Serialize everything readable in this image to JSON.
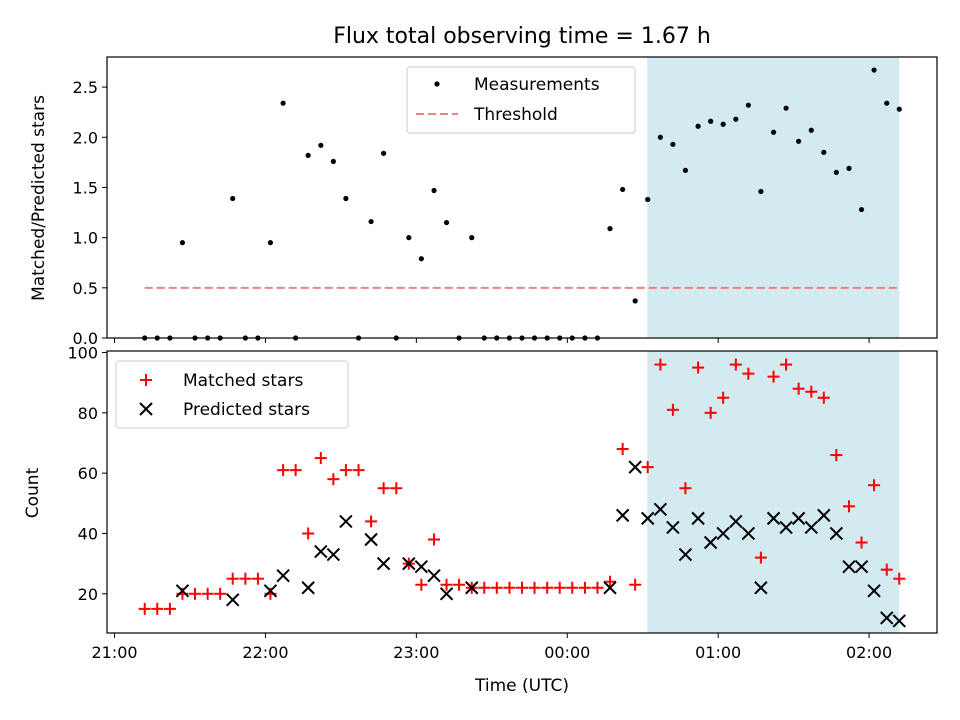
{
  "title": "Flux total observing time = 1.67 h",
  "chart_data": [
    {
      "type": "scatter",
      "panel": "top",
      "ylabel": "Matched/Predicted stars",
      "xlabel": "",
      "xlim": [
        -0.05,
        5.45
      ],
      "ylim": [
        0,
        2.8
      ],
      "yticks": [
        0.0,
        0.5,
        1.0,
        1.5,
        2.0,
        2.5
      ],
      "ytick_labels": [
        "0.0",
        "0.5",
        "1.0",
        "1.5",
        "2.0",
        "2.5"
      ],
      "shaded_region": [
        3.53,
        5.2
      ],
      "shaded_color": "#d3eaf0",
      "legend_position": "upper-center",
      "threshold": {
        "name": "Threshold",
        "value": 0.5,
        "x_range": [
          0.2,
          5.2
        ],
        "color": "#f08080"
      },
      "series": [
        {
          "name": "Measurements",
          "marker": "dot",
          "color": "#000000",
          "x": [
            0.2,
            0.283,
            0.367,
            0.45,
            0.533,
            0.617,
            0.7,
            0.783,
            0.867,
            0.95,
            1.033,
            1.117,
            1.2,
            1.283,
            1.367,
            1.45,
            1.533,
            1.617,
            1.7,
            1.783,
            1.867,
            1.95,
            2.033,
            2.117,
            2.2,
            2.283,
            2.367,
            2.45,
            2.533,
            2.617,
            2.7,
            2.783,
            2.867,
            2.95,
            3.033,
            3.117,
            3.2,
            3.283,
            3.367,
            3.45,
            3.533,
            3.617,
            3.7,
            3.783,
            3.867,
            3.95,
            4.033,
            4.117,
            4.2,
            4.283,
            4.367,
            4.45,
            4.533,
            4.617,
            4.7,
            4.783,
            4.867,
            4.95,
            5.033,
            5.117,
            5.2
          ],
          "y": [
            0,
            0,
            0,
            0.95,
            0,
            0,
            0,
            1.39,
            0,
            0,
            0.95,
            2.34,
            0,
            1.82,
            1.92,
            1.76,
            1.39,
            0,
            1.16,
            1.84,
            0,
            1.0,
            0.79,
            1.47,
            1.15,
            0,
            1.0,
            0,
            0,
            0,
            0,
            0,
            0,
            0,
            0,
            0,
            0,
            1.09,
            1.48,
            0.37,
            1.38,
            2.0,
            1.93,
            1.67,
            2.11,
            2.16,
            2.13,
            2.18,
            2.32,
            1.46,
            2.05,
            2.29,
            1.96,
            2.07,
            1.85,
            1.65,
            1.69,
            1.28,
            2.67,
            2.34,
            2.28
          ]
        }
      ]
    },
    {
      "type": "scatter",
      "panel": "bottom",
      "ylabel": "Count",
      "xlabel": "Time (UTC)",
      "xlim": [
        -0.05,
        5.45
      ],
      "ylim": [
        7,
        100.5
      ],
      "yticks": [
        20,
        40,
        60,
        80,
        100
      ],
      "ytick_labels": [
        "20",
        "40",
        "60",
        "80",
        "100"
      ],
      "xticks": [
        0,
        1,
        2,
        3,
        4,
        5
      ],
      "xtick_labels": [
        "21:00",
        "22:00",
        "23:00",
        "00:00",
        "01:00",
        "02:00"
      ],
      "shaded_region": [
        3.53,
        5.2
      ],
      "shaded_color": "#d3eaf0",
      "legend_position": "upper-left",
      "series": [
        {
          "name": "Matched stars",
          "marker": "plus",
          "color": "#ff0000",
          "x": [
            0.2,
            0.283,
            0.367,
            0.45,
            0.533,
            0.617,
            0.7,
            0.783,
            0.867,
            0.95,
            1.033,
            1.117,
            1.2,
            1.283,
            1.367,
            1.45,
            1.533,
            1.617,
            1.7,
            1.783,
            1.867,
            1.95,
            2.033,
            2.117,
            2.2,
            2.283,
            2.367,
            2.45,
            2.533,
            2.617,
            2.7,
            2.783,
            2.867,
            2.95,
            3.033,
            3.117,
            3.2,
            3.283,
            3.367,
            3.45,
            3.533,
            3.617,
            3.7,
            3.783,
            3.867,
            3.95,
            4.033,
            4.117,
            4.2,
            4.283,
            4.367,
            4.45,
            4.533,
            4.617,
            4.7,
            4.783,
            4.867,
            4.95,
            5.033,
            5.117,
            5.2
          ],
          "y": [
            15,
            15,
            15,
            20,
            20,
            20,
            20,
            25,
            25,
            25,
            20,
            61,
            61,
            40,
            65,
            58,
            61,
            61,
            44,
            55,
            55,
            30,
            23,
            38,
            23,
            23,
            22,
            22,
            22,
            22,
            22,
            22,
            22,
            22,
            22,
            22,
            22,
            24,
            68,
            23,
            62,
            96,
            81,
            55,
            95,
            80,
            85,
            96,
            93,
            32,
            92,
            96,
            88,
            87,
            85,
            66,
            49,
            37,
            56,
            28,
            25
          ]
        },
        {
          "name": "Predicted stars",
          "marker": "x",
          "color": "#000000",
          "x": [
            0.45,
            0.783,
            1.033,
            1.117,
            1.283,
            1.367,
            1.45,
            1.533,
            1.7,
            1.783,
            1.95,
            2.033,
            2.117,
            2.2,
            2.367,
            3.283,
            3.367,
            3.45,
            3.533,
            3.617,
            3.7,
            3.783,
            3.867,
            3.95,
            4.033,
            4.117,
            4.2,
            4.283,
            4.367,
            4.45,
            4.533,
            4.617,
            4.7,
            4.783,
            4.867,
            4.95,
            5.033,
            5.117,
            5.2
          ],
          "y": [
            21,
            18,
            21,
            26,
            22,
            34,
            33,
            44,
            38,
            30,
            30,
            29,
            26,
            20,
            22,
            22,
            46,
            62,
            45,
            48,
            42,
            33,
            45,
            37,
            40,
            44,
            40,
            22,
            45,
            42,
            45,
            42,
            46,
            40,
            29,
            29,
            21,
            12,
            11
          ]
        }
      ]
    }
  ]
}
